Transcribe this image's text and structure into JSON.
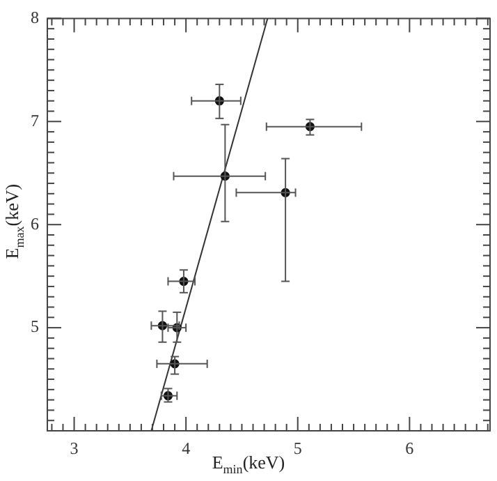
{
  "chart_data": {
    "type": "scatter",
    "xlabel": "E$_{min}$(keV)",
    "ylabel": "E$_{max}$(keV)",
    "xlim": [
      2.76,
      6.72
    ],
    "ylim": [
      4,
      8
    ],
    "xticks": [
      {
        "value": 2.8,
        "label": null
      },
      {
        "value": 2.9,
        "label": null
      },
      3,
      {
        "value": 3.1,
        "label": null
      },
      {
        "value": 3.2,
        "label": null
      },
      {
        "value": 3.3,
        "label": null
      },
      {
        "value": 3.4,
        "label": null
      },
      {
        "value": 3.5,
        "label": null
      },
      {
        "value": 3.6,
        "label": null
      },
      {
        "value": 3.7,
        "label": null
      },
      {
        "value": 3.8,
        "label": null
      },
      {
        "value": 3.9,
        "label": null
      },
      4,
      {
        "value": 4.1,
        "label": null
      },
      {
        "value": 4.2,
        "label": null
      },
      {
        "value": 4.3,
        "label": null
      },
      {
        "value": 4.4,
        "label": null
      },
      {
        "value": 4.5,
        "label": null
      },
      {
        "value": 4.6,
        "label": null
      },
      {
        "value": 4.7,
        "label": null
      },
      {
        "value": 4.8,
        "label": null
      },
      {
        "value": 4.9,
        "label": null
      },
      5,
      {
        "value": 5.1,
        "label": null
      },
      {
        "value": 5.2,
        "label": null
      },
      {
        "value": 5.3,
        "label": null
      },
      {
        "value": 5.4,
        "label": null
      },
      {
        "value": 5.5,
        "label": null
      },
      {
        "value": 5.6,
        "label": null
      },
      {
        "value": 5.7,
        "label": null
      },
      {
        "value": 5.8,
        "label": null
      },
      {
        "value": 5.9,
        "label": null
      },
      6,
      {
        "value": 6.1,
        "label": null
      },
      {
        "value": 6.2,
        "label": null
      },
      {
        "value": 6.3,
        "label": null
      },
      {
        "value": 6.4,
        "label": null
      },
      {
        "value": 6.5,
        "label": null
      },
      {
        "value": 6.6,
        "label": null
      },
      {
        "value": 6.7,
        "label": null
      }
    ],
    "yticks": [
      {
        "value": 4.1,
        "label": null
      },
      {
        "value": 4.2,
        "label": null
      },
      {
        "value": 4.3,
        "label": null
      },
      {
        "value": 4.4,
        "label": null
      },
      {
        "value": 4.5,
        "label": null
      },
      {
        "value": 4.6,
        "label": null
      },
      {
        "value": 4.7,
        "label": null
      },
      {
        "value": 4.8,
        "label": null
      },
      {
        "value": 4.9,
        "label": null
      },
      5,
      {
        "value": 5.1,
        "label": null
      },
      {
        "value": 5.2,
        "label": null
      },
      {
        "value": 5.3,
        "label": null
      },
      {
        "value": 5.4,
        "label": null
      },
      {
        "value": 5.5,
        "label": null
      },
      {
        "value": 5.6,
        "label": null
      },
      {
        "value": 5.7,
        "label": null
      },
      {
        "value": 5.8,
        "label": null
      },
      {
        "value": 5.9,
        "label": null
      },
      6,
      {
        "value": 6.1,
        "label": null
      },
      {
        "value": 6.2,
        "label": null
      },
      {
        "value": 6.3,
        "label": null
      },
      {
        "value": 6.4,
        "label": null
      },
      {
        "value": 6.5,
        "label": null
      },
      {
        "value": 6.6,
        "label": null
      },
      {
        "value": 6.7,
        "label": null
      },
      {
        "value": 6.8,
        "label": null
      },
      {
        "value": 6.9,
        "label": null
      },
      7,
      {
        "value": 7.1,
        "label": null
      },
      {
        "value": 7.2,
        "label": null
      },
      {
        "value": 7.3,
        "label": null
      },
      {
        "value": 7.4,
        "label": null
      },
      {
        "value": 7.5,
        "label": null
      },
      {
        "value": 7.6,
        "label": null
      },
      {
        "value": 7.7,
        "label": null
      },
      {
        "value": 7.8,
        "label": null
      },
      {
        "value": 7.9,
        "label": null
      },
      8
    ],
    "marker": "circle",
    "series": [
      {
        "type": "scatter",
        "color": "#111111",
        "x": [
          4.3,
          5.11,
          4.35,
          4.89,
          3.98,
          3.79,
          3.92,
          3.9,
          3.84
        ],
        "values": [
          7.2,
          6.95,
          6.47,
          6.31,
          5.45,
          5.02,
          5.0,
          4.65,
          4.34
        ],
        "xerrors": [
          [
            4.05,
            4.49
          ],
          [
            4.72,
            5.57
          ],
          [
            3.89,
            4.71
          ],
          [
            4.45,
            4.98
          ],
          [
            3.84,
            4.08
          ],
          [
            3.69,
            3.94
          ],
          [
            3.84,
            4.0
          ],
          [
            3.74,
            4.19
          ],
          [
            3.78,
            3.92
          ]
        ],
        "errors": [
          [
            7.03,
            7.36
          ],
          [
            6.87,
            7.02
          ],
          [
            6.03,
            6.97
          ],
          [
            5.45,
            6.64
          ],
          [
            5.34,
            5.56
          ],
          [
            4.86,
            5.16
          ],
          [
            4.86,
            5.15
          ],
          [
            4.55,
            4.72
          ],
          [
            4.28,
            4.41
          ]
        ]
      },
      {
        "type": "line",
        "color": "#333333",
        "marker": "none",
        "x": [
          3.69,
          4.73
        ],
        "values": [
          4.0,
          8.0
        ]
      }
    ]
  }
}
